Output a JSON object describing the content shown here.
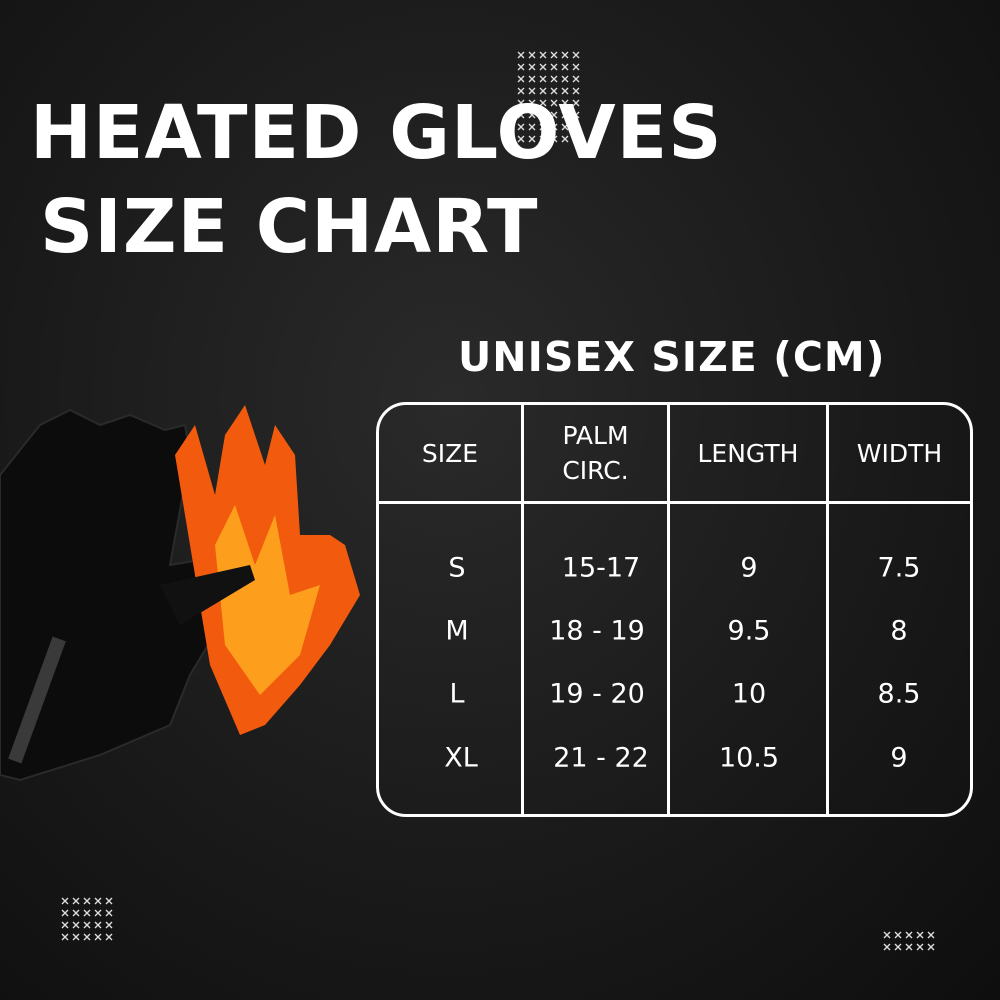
{
  "title_line1": "HEATED GLOVES",
  "title_line2": "SIZE CHART",
  "subtitle": "UNISEX SIZE (CM)",
  "table": {
    "headers": [
      "SIZE",
      "PALM\nCIRC.",
      "LENGTH",
      "WIDTH"
    ],
    "rows": [
      [
        "S",
        "15-17",
        "9",
        "7.5"
      ],
      [
        "M",
        "18 - 19",
        "9.5",
        "8"
      ],
      [
        "L",
        "19 - 20",
        "10",
        "8.5"
      ],
      [
        "XL",
        "21 - 22",
        "10.5",
        "9"
      ]
    ]
  },
  "colors": {
    "background": "#1a1a1a",
    "text": "#ffffff",
    "flame": "#f25a0e"
  }
}
